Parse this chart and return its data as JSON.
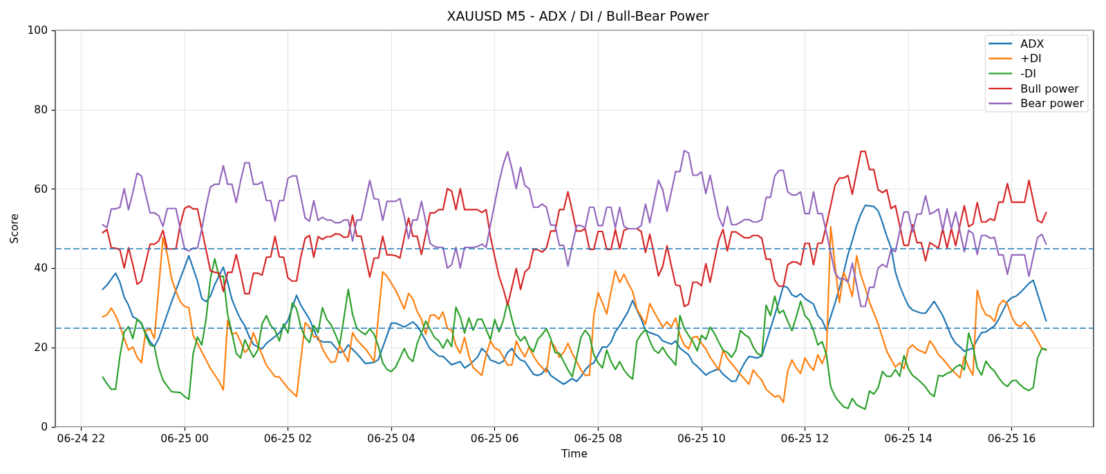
{
  "chart_data": {
    "type": "line",
    "title": "XAUUSD M5 - ADX / DI / Bull-Bear Power",
    "xlabel": "Time",
    "ylabel": "Score",
    "x": [
      "--06-24T22:25",
      "--06-24T22:30",
      "--06-24T22:35",
      "--06-24T22:40",
      "--06-24T22:45",
      "--06-24T22:50",
      "--06-24T22:55",
      "--06-24T23:00",
      "--06-24T23:05",
      "--06-24T23:10",
      "--06-24T23:15",
      "--06-24T23:20",
      "--06-24T23:25",
      "--06-24T23:30",
      "--06-24T23:35",
      "--06-24T23:40",
      "--06-24T23:45",
      "--06-24T23:50",
      "--06-24T23:55",
      "--06-25T00:00",
      "--06-25T00:05",
      "--06-25T00:10",
      "--06-25T00:15",
      "--06-25T00:20",
      "--06-25T00:25",
      "--06-25T00:30",
      "--06-25T00:35",
      "--06-25T00:40",
      "--06-25T00:45",
      "--06-25T00:50",
      "--06-25T00:55",
      "--06-25T01:00",
      "--06-25T01:05",
      "--06-25T01:10",
      "--06-25T01:15",
      "--06-25T01:20",
      "--06-25T01:25",
      "--06-25T01:30",
      "--06-25T01:35",
      "--06-25T01:40",
      "--06-25T01:45",
      "--06-25T01:50",
      "--06-25T01:55",
      "--06-25T02:00",
      "--06-25T02:05",
      "--06-25T02:10",
      "--06-25T02:15",
      "--06-25T02:20",
      "--06-25T02:25",
      "--06-25T02:30",
      "--06-25T02:35",
      "--06-25T02:40",
      "--06-25T02:45",
      "--06-25T02:50",
      "--06-25T02:55",
      "--06-25T03:00",
      "--06-25T03:05",
      "--06-25T03:10",
      "--06-25T03:15",
      "--06-25T03:20",
      "--06-25T03:25",
      "--06-25T03:30",
      "--06-25T03:35",
      "--06-25T03:40",
      "--06-25T03:45",
      "--06-25T03:50",
      "--06-25T03:55",
      "--06-25T04:00",
      "--06-25T04:05",
      "--06-25T04:10",
      "--06-25T04:15",
      "--06-25T04:20",
      "--06-25T04:25",
      "--06-25T04:30",
      "--06-25T04:35",
      "--06-25T04:40",
      "--06-25T04:45",
      "--06-25T04:50",
      "--06-25T04:55",
      "--06-25T05:00",
      "--06-25T05:05",
      "--06-25T05:10",
      "--06-25T05:15",
      "--06-25T05:20",
      "--06-25T05:25",
      "--06-25T05:30",
      "--06-25T05:35",
      "--06-25T05:40",
      "--06-25T05:45",
      "--06-25T05:50",
      "--06-25T05:55",
      "--06-25T06:00",
      "--06-25T06:05",
      "--06-25T06:10",
      "--06-25T06:15",
      "--06-25T06:20",
      "--06-25T06:25",
      "--06-25T06:30",
      "--06-25T06:35",
      "--06-25T06:40",
      "--06-25T06:45",
      "--06-25T06:50",
      "--06-25T06:55",
      "--06-25T07:00",
      "--06-25T07:05",
      "--06-25T07:10",
      "--06-25T07:15",
      "--06-25T07:20",
      "--06-25T07:25",
      "--06-25T07:30",
      "--06-25T07:35",
      "--06-25T07:40",
      "--06-25T07:45",
      "--06-25T07:50",
      "--06-25T07:55",
      "--06-25T08:00",
      "--06-25T08:05",
      "--06-25T08:10",
      "--06-25T08:15",
      "--06-25T08:20",
      "--06-25T08:25",
      "--06-25T08:30",
      "--06-25T08:35",
      "--06-25T08:40",
      "--06-25T08:45",
      "--06-25T08:50",
      "--06-25T08:55",
      "--06-25T09:00",
      "--06-25T09:05",
      "--06-25T09:10",
      "--06-25T09:15",
      "--06-25T09:20",
      "--06-25T09:25",
      "--06-25T09:30",
      "--06-25T09:35",
      "--06-25T09:40",
      "--06-25T09:45",
      "--06-25T09:50",
      "--06-25T09:55",
      "--06-25T10:00",
      "--06-25T10:05",
      "--06-25T10:10",
      "--06-25T10:15",
      "--06-25T10:20",
      "--06-25T10:25",
      "--06-25T10:30",
      "--06-25T10:35",
      "--06-25T10:40",
      "--06-25T10:45",
      "--06-25T10:50",
      "--06-25T10:55",
      "--06-25T11:00",
      "--06-25T11:05",
      "--06-25T11:10",
      "--06-25T11:15",
      "--06-25T11:20",
      "--06-25T11:25",
      "--06-25T11:30",
      "--06-25T11:35",
      "--06-25T11:40",
      "--06-25T11:45",
      "--06-25T11:50",
      "--06-25T11:55",
      "--06-25T12:00",
      "--06-25T12:05",
      "--06-25T12:10",
      "--06-25T12:15",
      "--06-25T12:20",
      "--06-25T12:25",
      "--06-25T12:30",
      "--06-25T12:35",
      "--06-25T12:40",
      "--06-25T12:45",
      "--06-25T12:50",
      "--06-25T12:55",
      "--06-25T13:00",
      "--06-25T13:05",
      "--06-25T13:10",
      "--06-25T13:15",
      "--06-25T13:20",
      "--06-25T13:25",
      "--06-25T13:30",
      "--06-25T13:35",
      "--06-25T13:40",
      "--06-25T13:45",
      "--06-25T13:50",
      "--06-25T13:55",
      "--06-25T14:00",
      "--06-25T14:05",
      "--06-25T14:10",
      "--06-25T14:15",
      "--06-25T14:20",
      "--06-25T14:25",
      "--06-25T14:30",
      "--06-25T14:35",
      "--06-25T14:40",
      "--06-25T14:45",
      "--06-25T14:50",
      "--06-25T14:55",
      "--06-25T15:00",
      "--06-25T15:05",
      "--06-25T15:10",
      "--06-25T15:15",
      "--06-25T15:20",
      "--06-25T15:25",
      "--06-25T15:30",
      "--06-25T15:35",
      "--06-25T15:40",
      "--06-25T15:45",
      "--06-25T15:50",
      "--06-25T15:55",
      "--06-25T16:00",
      "--06-25T16:05",
      "--06-25T16:10",
      "--06-25T16:15",
      "--06-25T16:20",
      "--06-25T16:25",
      "--06-25T16:30",
      "--06-25T16:35",
      "--06-25T16:40"
    ],
    "series": [
      {
        "name": "ADX",
        "color": "#1f77b4",
        "x": [
          "--06-24T22:25",
          "--06-24T22:30",
          "--06-24T22:40",
          "--06-24T22:45",
          "--06-24T22:50",
          "--06-24T22:55",
          "--06-24T23:00",
          "--06-24T23:05",
          "--06-24T23:10",
          "--06-24T23:15",
          "--06-24T23:20",
          "--06-24T23:25",
          "--06-24T23:30",
          "--06-24T23:45",
          "--06-25T00:05",
          "--06-25T00:15",
          "--06-25T00:20",
          "--06-25T00:25",
          "--06-25T00:30",
          "--06-25T00:35",
          "--06-25T00:45",
          "--06-25T00:50",
          "--06-25T00:55",
          "--06-25T01:00",
          "--06-25T01:05",
          "--06-25T01:10",
          "--06-25T01:15",
          "--06-25T01:20",
          "--06-25T01:30",
          "--06-25T01:35",
          "--06-25T01:45",
          "--06-25T01:50",
          "--06-25T02:00",
          "--06-25T02:10",
          "--06-25T02:15",
          "--06-25T02:25",
          "--06-25T02:35",
          "--06-25T02:40",
          "--06-25T02:50",
          "--06-25T03:00",
          "--06-25T03:05",
          "--06-25T03:10",
          "--06-25T03:20",
          "--06-25T03:30",
          "--06-25T03:40",
          "--06-25T03:45",
          "--06-25T03:55",
          "--06-25T04:00",
          "--06-25T04:05",
          "--06-25T04:15",
          "--06-25T04:25",
          "--06-25T04:30",
          "--06-25T04:35",
          "--06-25T04:45",
          "--06-25T04:55",
          "--06-25T05:00",
          "--06-25T05:10",
          "--06-25T05:20",
          "--06-25T05:25",
          "--06-25T05:30",
          "--06-25T05:40",
          "--06-25T05:45",
          "--06-25T05:50",
          "--06-25T05:55",
          "--06-25T06:00",
          "--06-25T06:05",
          "--06-25T06:10",
          "--06-25T06:15",
          "--06-25T06:20",
          "--06-25T06:25",
          "--06-25T06:30",
          "--06-25T06:35",
          "--06-25T06:45",
          "--06-25T06:50",
          "--06-25T06:55",
          "--06-25T07:00",
          "--06-25T07:05",
          "--06-25T07:15",
          "--06-25T07:20",
          "--06-25T07:30",
          "--06-25T07:35",
          "--06-25T07:40",
          "--06-25T07:45",
          "--06-25T07:50",
          "--06-25T07:55",
          "--06-25T08:05",
          "--06-25T08:10",
          "--06-25T08:15",
          "--06-25T08:20",
          "--06-25T08:25",
          "--06-25T08:35",
          "--06-25T08:40",
          "--06-25T08:45",
          "--06-25T08:50",
          "--06-25T08:55",
          "--06-25T09:00",
          "--06-25T09:10",
          "--06-25T09:15",
          "--06-25T09:25",
          "--06-25T09:30",
          "--06-25T09:35",
          "--06-25T09:45",
          "--06-25T09:50",
          "--06-25T09:55",
          "--06-25T10:05",
          "--06-25T10:10",
          "--06-25T10:20",
          "--06-25T10:25",
          "--06-25T10:35",
          "--06-25T10:40",
          "--06-25T10:45",
          "--06-25T10:50",
          "--06-25T10:55",
          "--06-25T11:05",
          "--06-25T11:10",
          "--06-25T11:20",
          "--06-25T11:30",
          "--06-25T11:35",
          "--06-25T11:40",
          "--06-25T11:45",
          "--06-25T11:50",
          "--06-25T11:55",
          "--06-25T12:00",
          "--06-25T12:10",
          "--06-25T12:15",
          "--06-25T12:20",
          "--06-25T12:25",
          "--06-25T12:35",
          "--06-25T12:40",
          "--06-25T12:45",
          "--06-25T12:50",
          "--06-25T12:55",
          "--06-25T13:00",
          "--06-25T13:05",
          "--06-25T13:10",
          "--06-25T13:20",
          "--06-25T13:25",
          "--06-25T13:30",
          "--06-25T13:35",
          "--06-25T13:40",
          "--06-25T13:45",
          "--06-25T13:50",
          "--06-25T13:55",
          "--06-25T14:00",
          "--06-25T14:05",
          "--06-25T14:10",
          "--06-25T14:15",
          "--06-25T14:20",
          "--06-25T14:30",
          "--06-25T14:40",
          "--06-25T14:45",
          "--06-25T14:50",
          "--06-25T14:55",
          "--06-25T15:00",
          "--06-25T15:05",
          "--06-25T15:15",
          "--06-25T15:20",
          "--06-25T15:25",
          "--06-25T15:30",
          "--06-25T15:40",
          "--06-25T15:45",
          "--06-25T15:55",
          "--06-25T16:00",
          "--06-25T16:05",
          "--06-25T16:10",
          "--06-25T16:20",
          "--06-25T16:25",
          "--06-25T16:40"
        ],
        "values": [
          34.7,
          35.8,
          38.8,
          36.5,
          32.7,
          30.7,
          27.8,
          27.2,
          26.0,
          23.7,
          21.5,
          20.3,
          22.3,
          31.6,
          43.2,
          36.8,
          32.4,
          31.6,
          33.0,
          35.9,
          40.3,
          36.5,
          32.2,
          29.5,
          27.2,
          25.5,
          22.8,
          20.8,
          19.7,
          21.1,
          22.8,
          23.7,
          26.9,
          33.2,
          30.7,
          27.2,
          22.0,
          21.5,
          21.4,
          18.8,
          19.1,
          20.7,
          18.5,
          16.0,
          16.3,
          17.0,
          23.1,
          26.2,
          26.2,
          25.2,
          26.5,
          25.5,
          23.7,
          19.7,
          17.9,
          17.8,
          15.7,
          16.5,
          14.9,
          15.6,
          17.6,
          19.8,
          18.8,
          16.9,
          16.5,
          16.0,
          16.6,
          18.8,
          19.8,
          18.0,
          16.9,
          16.5,
          13.3,
          13.0,
          13.5,
          14.9,
          13.0,
          11.5,
          10.8,
          12.2,
          11.5,
          12.7,
          14.4,
          15.6,
          16.2,
          20.2,
          20.1,
          21.4,
          24.0,
          25.5,
          29.2,
          31.9,
          29.5,
          27.2,
          24.4,
          23.8,
          23.0,
          21.7,
          20.9,
          21.7,
          19.9,
          18.2,
          16.2,
          15.3,
          13.1,
          13.8,
          14.7,
          13.3,
          11.5,
          11.6,
          14.1,
          16.2,
          17.8,
          17.4,
          17.9,
          24.8,
          31.7,
          35.6,
          35.1,
          33.3,
          32.8,
          33.6,
          32.4,
          31.0,
          28.1,
          26.9,
          24.4,
          31.3,
          35.0,
          39.0,
          43.5,
          47.0,
          50.8,
          53.7,
          55.9,
          55.6,
          54.5,
          51.6,
          48.1,
          45.2,
          39.1,
          35.6,
          33.0,
          30.6,
          29.5,
          29.1,
          28.7,
          28.7,
          31.7,
          28.1,
          25.5,
          22.8,
          21.1,
          20.2,
          19.1,
          19.9,
          22.0,
          23.8,
          24.0,
          25.5,
          27.2,
          31.6,
          32.6,
          33.0,
          33.9,
          36.2,
          37.0,
          26.7
        ]
      },
      {
        "name": "+DI",
        "color": "#ff7f0e",
        "x": [
          "--06-24T22:25",
          "--06-24T22:30",
          "--06-24T22:35",
          "--06-24T22:40",
          "--06-24T22:45",
          "--06-24T22:50",
          "--06-24T22:55",
          "--06-24T23:00",
          "--06-24T23:05",
          "--06-24T23:10",
          "--06-24T23:15",
          "--06-24T23:20",
          "--06-24T23:25",
          "--06-24T23:35",
          "--06-24T23:40",
          "--06-24T23:45",
          "--06-24T23:50",
          "--06-24T23:55",
          "--06-25T00:00",
          "--06-25T00:05",
          "--06-25T00:10",
          "--06-25T00:15",
          "--06-25T00:20",
          "--06-25T00:30",
          "--06-25T00:40",
          "--06-25T00:45",
          "--06-25T00:50",
          "--06-25T00:55",
          "--06-25T01:00",
          "--06-25T01:05",
          "--06-25T01:10",
          "--06-25T01:15",
          "--06-25T01:20",
          "--06-25T01:25",
          "--06-25T01:35",
          "--06-25T01:45",
          "--06-25T01:50",
          "--06-25T02:00",
          "--06-25T02:10",
          "--06-25T02:20",
          "--06-25T02:25",
          "--06-25T02:30",
          "--06-25T02:35",
          "--06-25T02:40",
          "--06-25T02:45",
          "--06-25T02:50",
          "--06-25T02:55",
          "--06-25T03:00",
          "--06-25T03:05",
          "--06-25T03:10",
          "--06-25T03:15",
          "--06-25T03:20",
          "--06-25T03:25",
          "--06-25T03:30",
          "--06-25T03:35",
          "--06-25T03:40",
          "--06-25T03:45",
          "--06-25T03:50",
          "--06-25T03:55",
          "--06-25T04:05",
          "--06-25T04:15",
          "--06-25T04:20",
          "--06-25T04:25",
          "--06-25T04:30",
          "--06-25T04:35",
          "--06-25T04:40",
          "--06-25T04:45",
          "--06-25T04:50",
          "--06-25T04:55",
          "--06-25T05:00",
          "--06-25T05:05",
          "--06-25T05:10",
          "--06-25T05:15",
          "--06-25T05:20",
          "--06-25T05:25",
          "--06-25T05:30",
          "--06-25T05:35",
          "--06-25T05:45",
          "--06-25T05:50",
          "--06-25T05:55",
          "--06-25T06:00",
          "--06-25T06:05",
          "--06-25T06:10",
          "--06-25T06:15",
          "--06-25T06:20",
          "--06-25T06:25",
          "--06-25T06:30",
          "--06-25T06:35",
          "--06-25T06:40",
          "--06-25T06:45",
          "--06-25T06:50",
          "--06-25T07:00",
          "--06-25T07:05",
          "--06-25T07:10",
          "--06-25T07:15",
          "--06-25T07:20",
          "--06-25T07:25",
          "--06-25T07:30",
          "--06-25T07:35",
          "--06-25T07:40",
          "--06-25T07:45",
          "--06-25T07:50",
          "--06-25T07:55",
          "--06-25T08:00",
          "--06-25T08:05",
          "--06-25T08:10",
          "--06-25T08:15",
          "--06-25T08:20",
          "--06-25T08:25",
          "--06-25T08:30",
          "--06-25T08:35",
          "--06-25T08:40",
          "--06-25T08:45",
          "--06-25T08:55",
          "--06-25T09:00",
          "--06-25T09:05",
          "--06-25T09:10",
          "--06-25T09:15",
          "--06-25T09:20",
          "--06-25T09:25",
          "--06-25T09:30",
          "--06-25T09:35",
          "--06-25T09:40",
          "--06-25T09:45",
          "--06-25T09:50",
          "--06-25T09:55",
          "--06-25T10:00",
          "--06-25T10:05",
          "--06-25T10:10",
          "--06-25T10:20",
          "--06-25T10:25",
          "--06-25T10:30",
          "--06-25T10:45",
          "--06-25T10:55",
          "--06-25T11:00",
          "--06-25T11:05",
          "--06-25T11:10",
          "--06-25T11:15",
          "--06-25T11:25",
          "--06-25T11:30",
          "--06-25T11:35",
          "--06-25T11:40",
          "--06-25T11:45",
          "--06-25T11:50",
          "--06-25T11:55",
          "--06-25T12:00",
          "--06-25T12:05",
          "--06-25T12:10",
          "--06-25T12:15",
          "--06-25T12:20",
          "--06-25T12:25",
          "--06-25T12:30",
          "--06-25T12:35",
          "--06-25T12:40",
          "--06-25T12:45",
          "--06-25T12:50",
          "--06-25T12:55",
          "--06-25T13:00",
          "--06-25T13:05",
          "--06-25T13:10",
          "--06-25T13:15",
          "--06-25T13:25",
          "--06-25T13:35",
          "--06-25T13:45",
          "--06-25T13:50",
          "--06-25T13:55",
          "--06-25T14:00",
          "--06-25T14:05",
          "--06-25T14:10",
          "--06-25T14:15",
          "--06-25T14:20",
          "--06-25T14:25",
          "--06-25T14:30",
          "--06-25T14:35",
          "--06-25T14:40",
          "--06-25T14:50",
          "--06-25T15:00",
          "--06-25T15:05",
          "--06-25T15:10",
          "--06-25T15:15",
          "--06-25T15:20",
          "--06-25T15:25",
          "--06-25T15:30",
          "--06-25T15:35",
          "--06-25T15:40",
          "--06-25T15:45",
          "--06-25T15:50",
          "--06-25T15:55",
          "--06-25T16:00",
          "--06-25T16:05",
          "--06-25T16:10",
          "--06-25T16:15",
          "--06-25T16:20",
          "--06-25T16:25",
          "--06-25T16:35",
          "--06-25T16:40"
        ],
        "values": [
          27.8,
          28.3,
          30.0,
          28.1,
          25.5,
          22.3,
          19.4,
          20.2,
          17.6,
          16.2,
          24.3,
          24.7,
          22.3,
          47.8,
          43.5,
          37.4,
          34.2,
          31.6,
          30.4,
          30.1,
          23.1,
          21.1,
          19.0,
          14.8,
          11.5,
          9.3,
          26.9,
          23.4,
          23.8,
          21.5,
          18.8,
          19.9,
          23.8,
          20.8,
          15.6,
          12.7,
          12.6,
          9.8,
          7.7,
          26.3,
          25.2,
          22.7,
          22.7,
          19.8,
          17.8,
          16.3,
          16.5,
          20.5,
          18.6,
          16.5,
          23.8,
          22.0,
          20.8,
          19.7,
          18.2,
          16.5,
          28.0,
          39.1,
          38.0,
          34.5,
          29.8,
          33.7,
          32.3,
          29.1,
          27.2,
          23.4,
          28.1,
          28.3,
          27.2,
          29.0,
          24.9,
          24.4,
          20.5,
          18.6,
          22.6,
          17.9,
          15.0,
          13.0,
          18.2,
          21.7,
          19.9,
          19.4,
          17.6,
          15.6,
          15.7,
          21.7,
          19.4,
          17.7,
          20.2,
          17.9,
          16.2,
          13.8,
          21.5,
          20.2,
          17.6,
          18.8,
          21.1,
          18.5,
          16.5,
          14.4,
          13.0,
          13.1,
          28.1,
          33.9,
          31.3,
          28.5,
          34.2,
          39.4,
          36.4,
          38.5,
          36.2,
          34.2,
          29.8,
          25.9,
          31.1,
          29.0,
          27.1,
          25.2,
          26.5,
          25.2,
          27.5,
          23.1,
          20.7,
          19.7,
          22.6,
          22.8,
          21.1,
          19.7,
          17.6,
          14.4,
          19.4,
          17.3,
          13.3,
          10.8,
          14.4,
          13.0,
          11.8,
          9.5,
          7.6,
          7.9,
          6.2,
          14.1,
          16.9,
          14.9,
          13.5,
          17.4,
          15.6,
          14.3,
          18.2,
          16.0,
          18.8,
          50.5,
          40.6,
          31.4,
          39.0,
          36.5,
          32.9,
          43.2,
          38.3,
          35.1,
          31.4,
          26.0,
          19.1,
          15.1,
          16.2,
          14.7,
          19.7,
          20.7,
          19.6,
          19.1,
          18.6,
          21.7,
          20.3,
          18.2,
          17.2,
          14.5,
          12.4,
          17.8,
          15.0,
          13.1,
          34.5,
          30.4,
          28.3,
          27.9,
          26.6,
          30.6,
          32.0,
          31.0,
          27.8,
          25.9,
          25.3,
          26.5,
          25.2,
          23.8,
          19.8,
          19.4
        ]
      },
      {
        "name": "-DI",
        "color": "#2ca02c",
        "values": [
          12.6,
          10.9,
          9.5,
          9.5,
          17.9,
          24.0,
          25.3,
          22.3,
          27.2,
          26.2,
          23.1,
          20.7,
          20.3,
          15.0,
          11.8,
          10.3,
          8.9,
          8.8,
          8.7,
          7.7,
          7.0,
          18.5,
          22.7,
          20.7,
          27.2,
          37.4,
          42.4,
          38.0,
          38.0,
          28.4,
          23.7,
          18.6,
          17.4,
          22.0,
          19.7,
          17.6,
          19.4,
          26.0,
          28.1,
          25.6,
          24.4,
          21.7,
          26.0,
          23.7,
          31.3,
          29.8,
          25.2,
          22.6,
          21.3,
          25.6,
          23.8,
          30.1,
          27.2,
          25.8,
          23.4,
          20.7,
          27.5,
          34.7,
          28.4,
          24.9,
          24.0,
          23.3,
          24.8,
          23.4,
          20.3,
          16.2,
          14.5,
          14.0,
          15.1,
          17.4,
          19.8,
          17.5,
          16.5,
          21.1,
          23.8,
          26.7,
          24.6,
          22.6,
          21.7,
          19.9,
          22.1,
          20.3,
          30.2,
          27.8,
          23.7,
          27.5,
          24.4,
          27.1,
          27.2,
          24.6,
          22.0,
          27.1,
          24.0,
          26.9,
          31.6,
          27.2,
          23.3,
          21.7,
          22.8,
          20.2,
          19.0,
          22.1,
          23.3,
          24.8,
          22.3,
          18.8,
          18.6,
          16.5,
          14.4,
          12.7,
          17.5,
          22.6,
          24.4,
          23.0,
          18.2,
          16.2,
          14.9,
          19.4,
          16.5,
          14.5,
          16.5,
          14.4,
          13.0,
          12.1,
          21.7,
          23.4,
          24.6,
          21.7,
          19.4,
          18.6,
          20.1,
          18.2,
          17.0,
          15.6,
          28.1,
          24.8,
          23.1,
          21.5,
          19.2,
          23.1,
          22.1,
          25.2,
          23.6,
          21.4,
          19.4,
          18.8,
          17.6,
          19.4,
          24.4,
          23.3,
          22.6,
          20.2,
          18.5,
          18.0,
          30.7,
          28.1,
          33.0,
          28.7,
          29.4,
          26.7,
          24.3,
          27.8,
          31.7,
          28.1,
          26.9,
          24.3,
          20.7,
          21.5,
          18.2,
          10.1,
          7.7,
          6.3,
          5.1,
          4.7,
          7.2,
          5.6,
          5.0,
          4.5,
          9.1,
          8.3,
          9.9,
          14.0,
          12.8,
          12.8,
          14.5,
          12.8,
          18.0,
          14.7,
          13.0,
          12.2,
          11.2,
          10.1,
          8.5,
          7.7,
          13.0,
          12.8,
          13.5,
          14.0,
          15.1,
          15.7,
          14.4,
          23.7,
          20.3,
          14.9,
          13.1,
          16.6,
          15.1,
          14.1,
          12.4,
          11.0,
          10.2,
          11.6,
          11.8,
          10.6,
          9.7,
          9.2,
          9.9,
          17.4,
          19.8,
          19.5
        ]
      },
      {
        "name": "Bull power",
        "color": "#d62728",
        "values": [
          49.0,
          49.8,
          45.2,
          45.1,
          44.7,
          40.1,
          45.2,
          40.9,
          36.0,
          36.8,
          41.5,
          46.1,
          46.1,
          46.9,
          49.6,
          44.9,
          44.9,
          44.9,
          51.0,
          55.1,
          55.7,
          55.0,
          55.0,
          49.8,
          44.7,
          39.4,
          39.0,
          38.8,
          34.2,
          39.0,
          39.0,
          43.5,
          38.8,
          33.6,
          33.6,
          38.8,
          38.8,
          38.3,
          42.8,
          42.9,
          48.1,
          42.9,
          42.8,
          37.6,
          36.8,
          36.8,
          42.9,
          47.6,
          48.3,
          42.8,
          48.0,
          47.3,
          48.0,
          48.0,
          48.7,
          48.6,
          47.8,
          48.0,
          53.4,
          48.1,
          48.1,
          42.9,
          37.8,
          42.6,
          42.6,
          48.1,
          43.4,
          43.4,
          43.2,
          42.6,
          47.8,
          52.7,
          48.1,
          48.1,
          43.5,
          48.7,
          54.0,
          54.0,
          54.8,
          54.8,
          60.1,
          59.5,
          54.8,
          60.1,
          54.8,
          54.8,
          54.8,
          54.8,
          54.1,
          54.8,
          48.1,
          42.9,
          38.0,
          34.8,
          30.8,
          35.3,
          40.0,
          34.7,
          39.1,
          40.1,
          44.8,
          44.7,
          44.1,
          45.1,
          49.4,
          49.4,
          54.8,
          54.8,
          59.3,
          54.5,
          49.4,
          49.4,
          50.0,
          44.8,
          44.8,
          49.3,
          49.3,
          44.8,
          44.8,
          49.8,
          44.9,
          49.6,
          50.0,
          50.0,
          50.0,
          49.3,
          44.0,
          48.6,
          43.5,
          38.1,
          40.5,
          45.7,
          40.6,
          35.8,
          35.6,
          30.4,
          31.0,
          36.5,
          36.5,
          35.6,
          41.2,
          36.5,
          42.0,
          47.1,
          49.8,
          44.4,
          49.2,
          49.2,
          48.4,
          47.7,
          47.7,
          48.3,
          48.3,
          47.6,
          42.3,
          42.3,
          37.0,
          35.5,
          35.5,
          40.9,
          41.6,
          41.6,
          40.9,
          46.3,
          46.3,
          40.9,
          46.3,
          46.4,
          51.0,
          55.9,
          61.0,
          62.8,
          62.8,
          63.4,
          58.7,
          64.1,
          69.5,
          69.5,
          64.9,
          64.9,
          59.8,
          59.1,
          59.8,
          55.1,
          55.8,
          50.8,
          45.8,
          45.8,
          51.0,
          46.5,
          46.5,
          41.9,
          46.5,
          45.8,
          45.1,
          50.0,
          45.1,
          50.0,
          45.7,
          51.0,
          55.8,
          50.5,
          51.2,
          56.6,
          51.7,
          51.7,
          52.5,
          52.1,
          56.7,
          56.7,
          61.4,
          56.7,
          56.7,
          56.7,
          56.7,
          62.2,
          57.1,
          52.1,
          51.5,
          54.1
        ]
      },
      {
        "name": "Bear power",
        "color": "#9467bd",
        "values": [
          51.0,
          50.3,
          55.0,
          55.0,
          55.4,
          60.1,
          54.8,
          59.2,
          64.0,
          63.3,
          58.6,
          54.0,
          54.0,
          53.3,
          50.6,
          55.1,
          55.1,
          55.1,
          49.9,
          44.9,
          44.4,
          45.1,
          45.1,
          49.9,
          55.6,
          60.5,
          61.2,
          61.2,
          65.9,
          61.2,
          61.2,
          56.6,
          62.0,
          66.6,
          66.6,
          61.2,
          61.2,
          61.8,
          57.1,
          57.1,
          51.9,
          57.1,
          57.1,
          62.7,
          63.3,
          63.3,
          58.0,
          52.7,
          51.9,
          57.1,
          52.1,
          52.9,
          52.2,
          52.2,
          51.5,
          51.5,
          52.2,
          52.2,
          46.9,
          52.2,
          52.2,
          57.1,
          62.2,
          57.6,
          57.4,
          52.1,
          56.9,
          56.9,
          56.9,
          57.6,
          53.1,
          47.5,
          52.2,
          52.2,
          56.9,
          51.7,
          46.3,
          45.5,
          45.3,
          45.3,
          40.1,
          40.9,
          45.3,
          40.1,
          45.3,
          45.3,
          45.3,
          45.5,
          46.1,
          45.3,
          51.0,
          56.3,
          61.8,
          66.3,
          69.4,
          65.1,
          60.1,
          65.5,
          60.9,
          60.1,
          55.4,
          55.4,
          56.2,
          55.4,
          50.9,
          50.9,
          45.8,
          45.8,
          40.6,
          45.8,
          50.8,
          50.8,
          50.2,
          55.4,
          55.4,
          50.8,
          50.8,
          55.4,
          55.4,
          50.2,
          55.4,
          50.6,
          50.0,
          50.0,
          50.0,
          50.8,
          56.2,
          51.5,
          56.9,
          62.2,
          59.8,
          54.4,
          59.3,
          64.4,
          64.4,
          69.7,
          69.1,
          63.5,
          63.5,
          64.3,
          58.9,
          63.5,
          58.1,
          52.9,
          50.5,
          55.6,
          51.0,
          51.0,
          51.6,
          52.3,
          52.3,
          51.7,
          51.7,
          52.3,
          57.9,
          57.9,
          63.3,
          64.7,
          64.7,
          59.3,
          58.5,
          58.5,
          59.3,
          53.8,
          53.8,
          59.3,
          53.8,
          53.8,
          49.0,
          44.0,
          38.8,
          37.4,
          37.4,
          36.6,
          41.3,
          35.9,
          30.4,
          30.4,
          35.2,
          35.2,
          40.1,
          41.0,
          40.3,
          44.9,
          44.2,
          49.3,
          54.2,
          54.2,
          49.2,
          53.7,
          53.7,
          58.3,
          53.7,
          54.2,
          55.0,
          49.6,
          55.0,
          50.0,
          54.2,
          49.3,
          44.2,
          49.6,
          48.8,
          43.5,
          48.3,
          48.3,
          47.6,
          47.8,
          43.4,
          43.4,
          38.5,
          43.4,
          43.4,
          43.4,
          43.4,
          38.0,
          43.0,
          47.8,
          48.6,
          46.1
        ]
      }
    ],
    "xlim": [
      "--06-24T21:30",
      "--06-25T17:35"
    ],
    "xticks": [
      {
        "value": "--06-24T22:00",
        "label": "06-24 22"
      },
      {
        "value": "--06-25T00:00",
        "label": "06-25 00"
      },
      {
        "value": "--06-25T02:00",
        "label": "06-25 02"
      },
      {
        "value": "--06-25T04:00",
        "label": "06-25 04"
      },
      {
        "value": "--06-25T06:00",
        "label": "06-25 06"
      },
      {
        "value": "--06-25T08:00",
        "label": "06-25 08"
      },
      {
        "value": "--06-25T10:00",
        "label": "06-25 10"
      },
      {
        "value": "--06-25T12:00",
        "label": "06-25 12"
      },
      {
        "value": "--06-25T14:00",
        "label": "06-25 14"
      },
      {
        "value": "--06-25T16:00",
        "label": "06-25 16"
      }
    ],
    "ylim": [
      0,
      100
    ],
    "yticks": [
      0,
      20,
      40,
      60,
      80,
      100
    ],
    "ref_lines": [
      {
        "axis": "y",
        "value": 45,
        "color": "#1f77b4",
        "line_style": "dashed"
      },
      {
        "axis": "y",
        "value": 25,
        "color": "#1f77b4",
        "line_style": "dashed"
      }
    ],
    "grid": true,
    "legend": "top right",
    "marker": "none",
    "line_style": "solid"
  }
}
